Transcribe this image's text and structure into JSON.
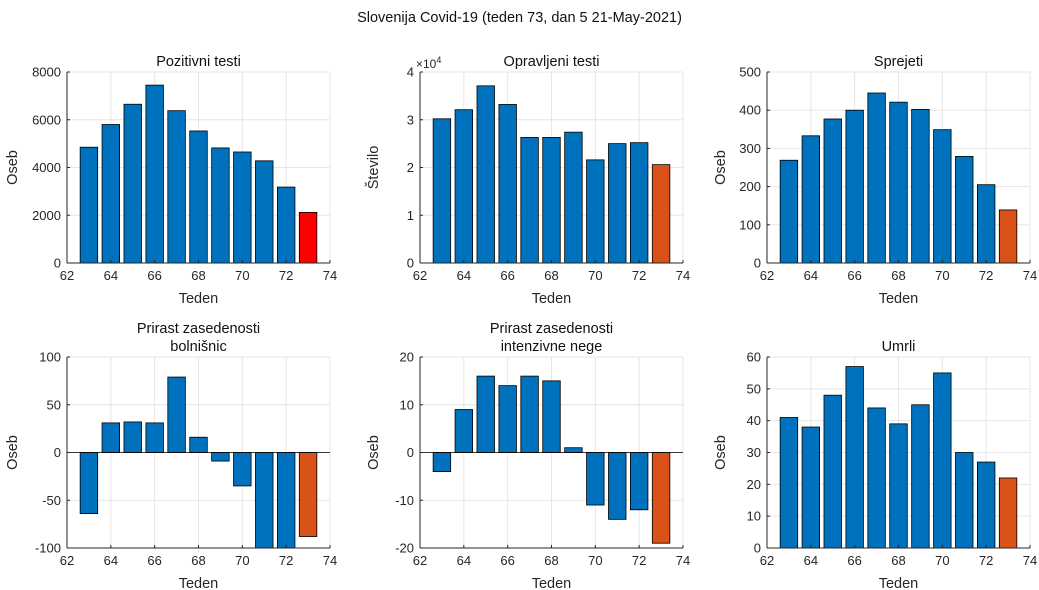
{
  "figure": {
    "suptitle": "Slovenija Covid-19 (teden 73, dan 5 21-May-2021)",
    "colors": {
      "bar": "#0072BD",
      "last_bar_red": "#FF0000",
      "last_bar_orange": "#D95319",
      "grid": "#E6E6E6",
      "axis": "#262626"
    }
  },
  "chart_data": [
    {
      "type": "bar",
      "title": [
        "Pozitivni testi"
      ],
      "xlabel": "Teden",
      "ylabel": "Oseb",
      "xlim": [
        62,
        74
      ],
      "ylim": [
        0,
        8000
      ],
      "xticks": [
        "62",
        "64",
        "66",
        "68",
        "70",
        "72",
        "74"
      ],
      "yticks": [
        0,
        2000,
        4000,
        6000,
        8000
      ],
      "ytick_labels": [
        "0",
        "2000",
        "4000",
        "6000",
        "8000"
      ],
      "x": [
        63,
        64,
        65,
        66,
        67,
        68,
        69,
        70,
        71,
        72,
        73
      ],
      "values": [
        4850,
        5800,
        6650,
        7450,
        6380,
        5530,
        4820,
        4650,
        4280,
        3180,
        2120
      ],
      "last_color": "red",
      "grid": true
    },
    {
      "type": "bar",
      "title": [
        "Opravljeni testi"
      ],
      "xlabel": "Teden",
      "ylabel": "Število",
      "exponent_label": "×10",
      "exponent_power": "4",
      "xlim": [
        62,
        74
      ],
      "ylim": [
        0,
        4
      ],
      "xticks": [
        "62",
        "64",
        "66",
        "68",
        "70",
        "72",
        "74"
      ],
      "yticks": [
        0,
        1,
        2,
        3,
        4
      ],
      "ytick_labels": [
        "0",
        "1",
        "2",
        "3",
        "4"
      ],
      "x": [
        63,
        64,
        65,
        66,
        67,
        68,
        69,
        70,
        71,
        72,
        73
      ],
      "values": [
        3.02,
        3.21,
        3.71,
        3.32,
        2.63,
        2.63,
        2.74,
        2.16,
        2.5,
        2.52,
        2.06
      ],
      "last_color": "orange",
      "grid": true
    },
    {
      "type": "bar",
      "title": [
        "Sprejeti"
      ],
      "xlabel": "Teden",
      "ylabel": "Oseb",
      "xlim": [
        62,
        74
      ],
      "ylim": [
        0,
        500
      ],
      "xticks": [
        "62",
        "64",
        "66",
        "68",
        "70",
        "72",
        "74"
      ],
      "yticks": [
        0,
        100,
        200,
        300,
        400,
        500
      ],
      "ytick_labels": [
        "0",
        "100",
        "200",
        "300",
        "400",
        "500"
      ],
      "x": [
        63,
        64,
        65,
        66,
        67,
        68,
        69,
        70,
        71,
        72,
        73
      ],
      "values": [
        269,
        333,
        377,
        400,
        445,
        421,
        402,
        349,
        279,
        205,
        139
      ],
      "last_color": "orange",
      "grid": true
    },
    {
      "type": "bar",
      "title": [
        "Prirast zasedenosti",
        "bolnišnic"
      ],
      "xlabel": "Teden",
      "ylabel": "Oseb",
      "xlim": [
        62,
        74
      ],
      "ylim": [
        -100,
        100
      ],
      "xticks": [
        "62",
        "64",
        "66",
        "68",
        "70",
        "72",
        "74"
      ],
      "yticks": [
        -100,
        -50,
        0,
        50,
        100
      ],
      "ytick_labels": [
        "-100",
        "-50",
        "0",
        "50",
        "100"
      ],
      "x": [
        63,
        64,
        65,
        66,
        67,
        68,
        69,
        70,
        71,
        72,
        73
      ],
      "values": [
        -64,
        31,
        32,
        31,
        79,
        16,
        -9,
        -35,
        -100,
        -100,
        -88
      ],
      "last_color": "orange",
      "grid": true
    },
    {
      "type": "bar",
      "title": [
        "Prirast zasedenosti",
        "intenzivne nege"
      ],
      "xlabel": "Teden",
      "ylabel": "Oseb",
      "xlim": [
        62,
        74
      ],
      "ylim": [
        -20,
        20
      ],
      "xticks": [
        "62",
        "64",
        "66",
        "68",
        "70",
        "72",
        "74"
      ],
      "yticks": [
        -20,
        -10,
        0,
        10,
        20
      ],
      "ytick_labels": [
        "-20",
        "-10",
        "0",
        "10",
        "20"
      ],
      "x": [
        63,
        64,
        65,
        66,
        67,
        68,
        69,
        70,
        71,
        72,
        73
      ],
      "values": [
        -4,
        9,
        16,
        14,
        16,
        15,
        1,
        -11,
        -14,
        -12,
        -19
      ],
      "last_color": "orange",
      "grid": true
    },
    {
      "type": "bar",
      "title": [
        "Umrli"
      ],
      "xlabel": "Teden",
      "ylabel": "Oseb",
      "xlim": [
        62,
        74
      ],
      "ylim": [
        0,
        60
      ],
      "xticks": [
        "62",
        "64",
        "66",
        "68",
        "70",
        "72",
        "74"
      ],
      "yticks": [
        0,
        10,
        20,
        30,
        40,
        50,
        60
      ],
      "ytick_labels": [
        "0",
        "10",
        "20",
        "30",
        "40",
        "50",
        "60"
      ],
      "x": [
        63,
        64,
        65,
        66,
        67,
        68,
        69,
        70,
        71,
        72,
        73
      ],
      "values": [
        41,
        38,
        48,
        57,
        44,
        39,
        45,
        55,
        30,
        27,
        22
      ],
      "last_color": "orange",
      "grid": true
    }
  ]
}
